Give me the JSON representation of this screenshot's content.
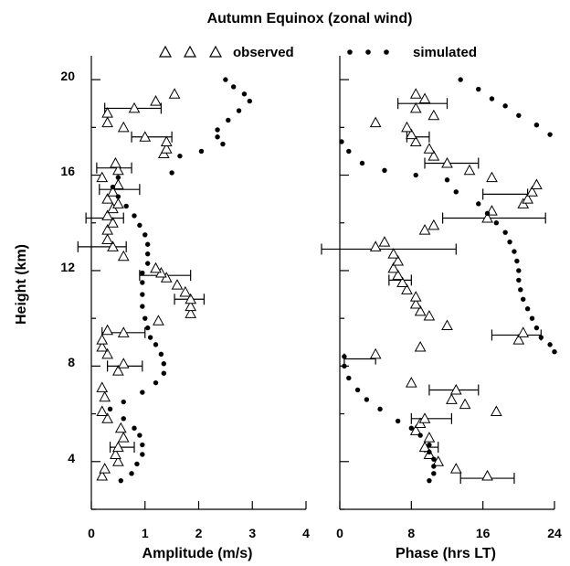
{
  "title": "Autumn Equinox  (zonal wind)",
  "legend": {
    "observed": "observed",
    "simulated": "simulated"
  },
  "y_label": "Height (km)",
  "y_ticks": [
    "4",
    "8",
    "12",
    "16",
    "20"
  ],
  "chart_data": [
    {
      "type": "scatter",
      "xlabel": "Amplitude (m/s)",
      "ylabel": "Height (km)",
      "xlim": [
        0,
        4
      ],
      "ylim": [
        2,
        21
      ],
      "xticks": [
        "0",
        "1",
        "2",
        "3",
        "4"
      ],
      "series": [
        {
          "name": "observed",
          "marker": "triangle",
          "points": [
            [
              0.2,
              3.4
            ],
            [
              0.25,
              3.7
            ],
            [
              0.5,
              4.0
            ],
            [
              0.45,
              4.3
            ],
            [
              0.5,
              4.6
            ],
            [
              0.6,
              5.0
            ],
            [
              0.55,
              5.4
            ],
            [
              0.3,
              5.8
            ],
            [
              0.2,
              6.1
            ],
            [
              0.25,
              6.7
            ],
            [
              0.2,
              7.1
            ],
            [
              0.5,
              7.8
            ],
            [
              0.6,
              8.1
            ],
            [
              0.3,
              8.5
            ],
            [
              0.2,
              8.8
            ],
            [
              0.2,
              9.1
            ],
            [
              0.6,
              9.4
            ],
            [
              0.3,
              9.5
            ],
            [
              1.25,
              9.9
            ],
            [
              1.85,
              10.2
            ],
            [
              1.85,
              10.5
            ],
            [
              1.85,
              10.8
            ],
            [
              1.75,
              11.1
            ],
            [
              1.6,
              11.4
            ],
            [
              1.4,
              11.7
            ],
            [
              1.3,
              11.9
            ],
            [
              1.2,
              12.1
            ],
            [
              0.6,
              12.6
            ],
            [
              0.4,
              13.0
            ],
            [
              0.3,
              13.3
            ],
            [
              0.3,
              13.7
            ],
            [
              0.4,
              14.0
            ],
            [
              0.3,
              14.3
            ],
            [
              0.4,
              14.6
            ],
            [
              0.5,
              14.8
            ],
            [
              0.3,
              15.0
            ],
            [
              0.4,
              15.3
            ],
            [
              0.5,
              15.6
            ],
            [
              0.2,
              15.9
            ],
            [
              0.5,
              16.2
            ],
            [
              0.45,
              16.5
            ],
            [
              1.35,
              16.9
            ],
            [
              1.4,
              17.1
            ],
            [
              1.4,
              17.4
            ],
            [
              1.0,
              17.6
            ],
            [
              0.6,
              18.0
            ],
            [
              0.3,
              18.2
            ],
            [
              0.3,
              18.6
            ],
            [
              0.8,
              18.8
            ],
            [
              1.2,
              19.1
            ],
            [
              1.55,
              19.4
            ]
          ]
        },
        {
          "name": "simulated",
          "marker": "dot",
          "points": [
            [
              0.55,
              3.2
            ],
            [
              0.75,
              3.5
            ],
            [
              0.85,
              3.9
            ],
            [
              0.95,
              4.3
            ],
            [
              0.95,
              4.7
            ],
            [
              0.9,
              5.1
            ],
            [
              0.8,
              5.4
            ],
            [
              0.6,
              5.8
            ],
            [
              0.35,
              6.2
            ],
            [
              0.6,
              6.5
            ],
            [
              0.95,
              6.9
            ],
            [
              1.2,
              7.3
            ],
            [
              1.35,
              7.7
            ],
            [
              1.35,
              8.1
            ],
            [
              1.3,
              8.5
            ],
            [
              1.2,
              8.9
            ],
            [
              1.1,
              9.2
            ],
            [
              1.05,
              9.6
            ],
            [
              1.0,
              10.0
            ],
            [
              0.95,
              10.5
            ],
            [
              0.95,
              11.0
            ],
            [
              0.95,
              11.5
            ],
            [
              0.95,
              11.9
            ],
            [
              1.05,
              12.3
            ],
            [
              1.05,
              12.7
            ],
            [
              1.05,
              13.1
            ],
            [
              1.0,
              13.5
            ],
            [
              0.9,
              13.9
            ],
            [
              0.8,
              14.3
            ],
            [
              0.65,
              14.7
            ],
            [
              0.5,
              15.1
            ],
            [
              0.4,
              15.5
            ],
            [
              0.5,
              15.9
            ],
            [
              1.5,
              16.1
            ],
            [
              1.65,
              16.8
            ],
            [
              2.05,
              17.0
            ],
            [
              2.45,
              17.3
            ],
            [
              2.35,
              17.6
            ],
            [
              2.35,
              17.9
            ],
            [
              2.55,
              18.3
            ],
            [
              2.75,
              18.7
            ],
            [
              2.95,
              19.1
            ],
            [
              2.85,
              19.4
            ],
            [
              2.65,
              19.7
            ],
            [
              2.5,
              20.0
            ]
          ]
        }
      ],
      "errorbars": [
        [
          0.25,
          1.3,
          18.8
        ],
        [
          0.75,
          1.5,
          17.6
        ],
        [
          0.1,
          0.75,
          16.3
        ],
        [
          0.15,
          0.9,
          15.4
        ],
        [
          -0.1,
          0.6,
          14.2
        ],
        [
          -0.25,
          0.65,
          13.0
        ],
        [
          0.9,
          1.85,
          11.8
        ],
        [
          1.55,
          2.1,
          10.8
        ],
        [
          0.2,
          1.0,
          9.4
        ],
        [
          0.3,
          0.95,
          8.0
        ],
        [
          0.35,
          0.8,
          4.6
        ]
      ]
    },
    {
      "type": "scatter",
      "xlabel": "Phase (hrs LT)",
      "ylabel": "Height (km)",
      "xlim": [
        0,
        24
      ],
      "ylim": [
        2,
        21
      ],
      "xticks": [
        "0",
        "8",
        "16",
        "24"
      ],
      "series": [
        {
          "name": "observed",
          "marker": "triangle",
          "points": [
            [
              16.5,
              3.4
            ],
            [
              13.0,
              3.7
            ],
            [
              11.0,
              4.0
            ],
            [
              10.0,
              4.3
            ],
            [
              9.5,
              4.6
            ],
            [
              10.0,
              5.0
            ],
            [
              8.5,
              5.3
            ],
            [
              9.0,
              5.6
            ],
            [
              9.5,
              5.8
            ],
            [
              17.5,
              6.1
            ],
            [
              14.0,
              6.4
            ],
            [
              12.5,
              6.6
            ],
            [
              13.0,
              7.0
            ],
            [
              8.0,
              7.3
            ],
            [
              4.0,
              8.5
            ],
            [
              9.0,
              8.8
            ],
            [
              20.0,
              9.1
            ],
            [
              20.5,
              9.4
            ],
            [
              12.0,
              9.7
            ],
            [
              10.0,
              10.1
            ],
            [
              9.0,
              10.3
            ],
            [
              8.5,
              10.6
            ],
            [
              8.5,
              10.9
            ],
            [
              7.5,
              11.2
            ],
            [
              7.0,
              11.5
            ],
            [
              6.5,
              11.8
            ],
            [
              6.0,
              12.1
            ],
            [
              6.5,
              12.4
            ],
            [
              6.0,
              12.7
            ],
            [
              4.0,
              13.0
            ],
            [
              5.0,
              13.2
            ],
            [
              9.5,
              13.7
            ],
            [
              10.5,
              13.9
            ],
            [
              16.5,
              14.2
            ],
            [
              17.0,
              14.5
            ],
            [
              20.5,
              14.8
            ],
            [
              21.0,
              15.0
            ],
            [
              21.5,
              15.3
            ],
            [
              22.0,
              15.6
            ],
            [
              17.0,
              15.9
            ],
            [
              14.5,
              16.2
            ],
            [
              12.0,
              16.5
            ],
            [
              10.5,
              16.8
            ],
            [
              10.0,
              17.1
            ],
            [
              8.5,
              17.4
            ],
            [
              8.0,
              17.7
            ],
            [
              7.5,
              18.0
            ],
            [
              4.0,
              18.2
            ],
            [
              10.5,
              18.5
            ],
            [
              8.5,
              18.8
            ],
            [
              9.5,
              19.2
            ],
            [
              8.5,
              19.4
            ]
          ]
        },
        {
          "name": "simulated",
          "marker": "dot",
          "points": [
            [
              10.0,
              3.2
            ],
            [
              10.5,
              3.5
            ],
            [
              10.5,
              3.8
            ],
            [
              10.5,
              4.1
            ],
            [
              10.0,
              4.4
            ],
            [
              10.0,
              4.7
            ],
            [
              9.0,
              5.1
            ],
            [
              8.0,
              5.4
            ],
            [
              6.5,
              5.7
            ],
            [
              4.5,
              6.2
            ],
            [
              3.0,
              6.6
            ],
            [
              2.0,
              7.0
            ],
            [
              1.0,
              7.5
            ],
            [
              0.5,
              8.0
            ],
            [
              0.5,
              8.4
            ],
            [
              24.0,
              8.6
            ],
            [
              23.5,
              8.9
            ],
            [
              22.5,
              9.2
            ],
            [
              22.0,
              9.6
            ],
            [
              21.5,
              10.0
            ],
            [
              21.0,
              10.4
            ],
            [
              20.5,
              10.8
            ],
            [
              20.2,
              11.2
            ],
            [
              20.0,
              11.6
            ],
            [
              20.0,
              12.0
            ],
            [
              19.8,
              12.4
            ],
            [
              19.5,
              12.8
            ],
            [
              19.0,
              13.2
            ],
            [
              18.5,
              13.6
            ],
            [
              17.5,
              14.0
            ],
            [
              16.5,
              14.4
            ],
            [
              15.5,
              14.8
            ],
            [
              13.0,
              15.3
            ],
            [
              12.0,
              15.8
            ],
            [
              8.5,
              16.0
            ],
            [
              5.0,
              16.2
            ],
            [
              2.5,
              16.5
            ],
            [
              1.0,
              17.0
            ],
            [
              0.2,
              17.4
            ],
            [
              23.5,
              17.7
            ],
            [
              22.0,
              18.1
            ],
            [
              20.0,
              18.5
            ],
            [
              18.5,
              18.9
            ],
            [
              17.0,
              19.2
            ],
            [
              15.5,
              19.6
            ],
            [
              13.5,
              20.0
            ]
          ]
        }
      ],
      "errorbars": [
        [
          6.5,
          12.0,
          19.0
        ],
        [
          7.5,
          10.0,
          17.6
        ],
        [
          9.5,
          15.5,
          16.5
        ],
        [
          16.0,
          21.0,
          15.2
        ],
        [
          11.5,
          23.0,
          14.2
        ],
        [
          -5.5,
          13.0,
          12.9
        ],
        [
          5.5,
          8.0,
          11.6
        ],
        [
          17.0,
          22.5,
          9.3
        ],
        [
          0.5,
          4.0,
          8.3
        ],
        [
          10.0,
          15.5,
          7.0
        ],
        [
          8.0,
          12.5,
          5.8
        ],
        [
          9.5,
          11.0,
          4.6
        ],
        [
          13.5,
          19.5,
          3.3
        ]
      ]
    }
  ]
}
